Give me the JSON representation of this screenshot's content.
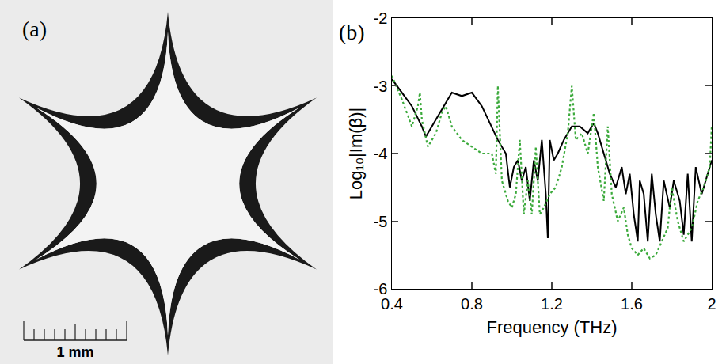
{
  "panel_a": {
    "label": "(a)",
    "scale_bar": "1 mm"
  },
  "chart_data": {
    "type": "line",
    "label": "(b)",
    "x_label": "Frequency (THz)",
    "y_label": "Log₁₀|Im(β)|",
    "xlim": [
      0.4,
      2
    ],
    "xticks": [
      0.4,
      0.8,
      1.2,
      1.6,
      2
    ],
    "ylim": [
      -6,
      -2
    ],
    "yticks": [
      -6,
      -5,
      -4,
      -3,
      -2
    ],
    "grid": false,
    "series": [
      {
        "color": "#000000",
        "line_style": "solid",
        "x": [
          0.4,
          0.45,
          0.5,
          0.55,
          0.57,
          0.6,
          0.65,
          0.7,
          0.75,
          0.8,
          0.85,
          0.9,
          0.93,
          0.97,
          0.99,
          1.01,
          1.03,
          1.05,
          1.07,
          1.09,
          1.11,
          1.13,
          1.15,
          1.17,
          1.18,
          1.19,
          1.21,
          1.23,
          1.26,
          1.3,
          1.34,
          1.38,
          1.41,
          1.43,
          1.46,
          1.49,
          1.52,
          1.55,
          1.57,
          1.59,
          1.61,
          1.63,
          1.64,
          1.66,
          1.68,
          1.7,
          1.72,
          1.74,
          1.76,
          1.79,
          1.81,
          1.84,
          1.86,
          1.88,
          1.9,
          1.92,
          1.95,
          1.98,
          2.0
        ],
        "values": [
          -2.9,
          -3.1,
          -3.3,
          -3.6,
          -3.75,
          -3.6,
          -3.35,
          -3.1,
          -3.15,
          -3.1,
          -3.3,
          -3.6,
          -3.8,
          -4.0,
          -4.5,
          -4.2,
          -4.1,
          -4.4,
          -4.2,
          -4.7,
          -4.1,
          -4.4,
          -3.8,
          -4.6,
          -5.25,
          -3.8,
          -4.1,
          -4.0,
          -3.8,
          -3.6,
          -3.6,
          -3.7,
          -3.55,
          -3.7,
          -4.0,
          -4.3,
          -4.5,
          -4.2,
          -4.6,
          -4.3,
          -4.9,
          -5.3,
          -4.4,
          -4.6,
          -5.3,
          -4.3,
          -4.9,
          -5.3,
          -4.4,
          -4.8,
          -4.4,
          -4.7,
          -5.2,
          -4.3,
          -5.3,
          -4.2,
          -4.6,
          -4.3,
          -4.1
        ]
      },
      {
        "color": "#3caa3c",
        "line_style": "dotted",
        "x": [
          0.4,
          0.45,
          0.5,
          0.53,
          0.54,
          0.55,
          0.58,
          0.62,
          0.65,
          0.67,
          0.7,
          0.75,
          0.8,
          0.85,
          0.9,
          0.92,
          0.93,
          0.95,
          0.98,
          1.0,
          1.02,
          1.04,
          1.06,
          1.08,
          1.1,
          1.12,
          1.14,
          1.16,
          1.19,
          1.22,
          1.25,
          1.28,
          1.3,
          1.32,
          1.35,
          1.38,
          1.41,
          1.43,
          1.46,
          1.48,
          1.5,
          1.53,
          1.56,
          1.58,
          1.6,
          1.63,
          1.66,
          1.69,
          1.72,
          1.75,
          1.78,
          1.8,
          1.83,
          1.86,
          1.9,
          1.93,
          1.96,
          1.99,
          2.0
        ],
        "values": [
          -2.85,
          -3.2,
          -3.6,
          -3.3,
          -3.1,
          -3.5,
          -3.9,
          -3.7,
          -3.4,
          -3.3,
          -3.6,
          -3.8,
          -3.9,
          -4.0,
          -4.0,
          -4.3,
          -3.0,
          -4.4,
          -4.7,
          -4.8,
          -4.6,
          -3.8,
          -4.9,
          -4.4,
          -4.9,
          -3.9,
          -4.9,
          -4.8,
          -4.6,
          -4.5,
          -4.2,
          -3.7,
          -3.0,
          -3.8,
          -3.7,
          -4.0,
          -3.4,
          -4.2,
          -4.7,
          -3.6,
          -4.6,
          -5.0,
          -4.8,
          -5.2,
          -5.4,
          -5.5,
          -5.4,
          -5.55,
          -5.5,
          -5.3,
          -5.1,
          -4.5,
          -5.0,
          -5.3,
          -5.1,
          -4.7,
          -4.5,
          -4.2,
          -3.6
        ]
      }
    ]
  }
}
